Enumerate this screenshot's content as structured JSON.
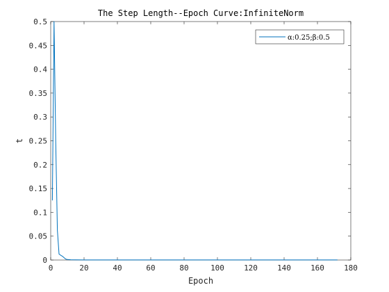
{
  "chart_data": {
    "type": "line",
    "title": "The Step Length--Epoch Curve:InfiniteNorm",
    "xlabel": "Epoch",
    "ylabel": "t",
    "xlim": [
      0,
      180
    ],
    "ylim": [
      0,
      0.5
    ],
    "xticks": [
      0,
      20,
      40,
      60,
      80,
      100,
      120,
      140,
      160,
      180
    ],
    "yticks": [
      0,
      0.05,
      0.1,
      0.15,
      0.2,
      0.25,
      0.3,
      0.35,
      0.4,
      0.45,
      0.5
    ],
    "xtick_labels": [
      "0",
      "20",
      "40",
      "60",
      "80",
      "100",
      "120",
      "140",
      "160",
      "180"
    ],
    "ytick_labels": [
      "0",
      "0.05",
      "0.1",
      "0.15",
      "0.2",
      "0.25",
      "0.3",
      "0.35",
      "0.4",
      "0.45",
      "0.5"
    ],
    "grid": false,
    "legend_position": "top-right",
    "series": [
      {
        "name": "α:0.25;β:0.5",
        "color": "#0072BD",
        "x": [
          1,
          2,
          3,
          4,
          5,
          6,
          7,
          8,
          9,
          10,
          12,
          15,
          20,
          30,
          50,
          80,
          100,
          120,
          140,
          160,
          172
        ],
        "y": [
          0.125,
          0.5,
          0.25,
          0.0625,
          0.0125,
          0.01,
          0.008,
          0.005,
          0.002,
          0.001,
          0.0005,
          0.0003,
          0.0002,
          0.0002,
          0.0002,
          0.0002,
          0.0002,
          0.0002,
          0.0002,
          0.0002,
          0.0002
        ]
      }
    ]
  }
}
